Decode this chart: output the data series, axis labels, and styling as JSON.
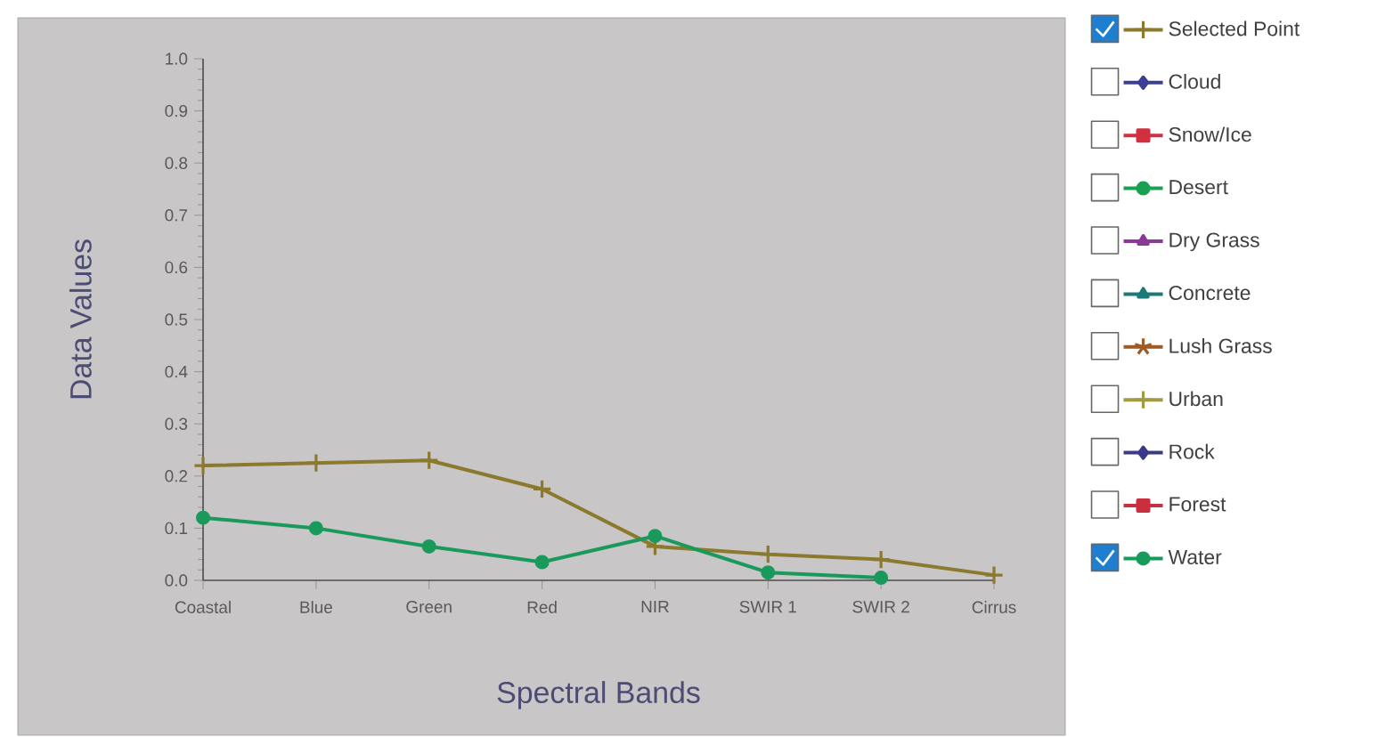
{
  "chart_data": {
    "type": "line",
    "xlabel": "Spectral Bands",
    "ylabel": "Data Values",
    "categories": [
      "Coastal",
      "Blue",
      "Green",
      "Red",
      "NIR",
      "SWIR 1",
      "SWIR 2",
      "Cirrus"
    ],
    "ylim": [
      0,
      1
    ],
    "yticks": [
      {
        "value": 0,
        "label": "0.0"
      },
      {
        "value": 0.1,
        "label": "0.1"
      },
      {
        "value": 0.2,
        "label": "0.2"
      },
      {
        "value": 0.3,
        "label": "0.3"
      },
      {
        "value": 0.4,
        "label": "0.4"
      },
      {
        "value": 0.5,
        "label": "0.5"
      },
      {
        "value": 0.6,
        "label": "0.6"
      },
      {
        "value": 0.7,
        "label": "0.7"
      },
      {
        "value": 0.8,
        "label": "0.8"
      },
      {
        "value": 0.9,
        "label": "0.9"
      },
      {
        "value": 1,
        "label": "1.0"
      }
    ],
    "legend": "right",
    "line_style": "solid",
    "series": [
      {
        "name": "Selected Point",
        "color": "#8b7a2e",
        "marker": "cross",
        "values": [
          0.22,
          0.225,
          0.23,
          0.175,
          0.065,
          0.05,
          0.04,
          0.01
        ]
      },
      {
        "name": "Cloud",
        "color": "#3a3f95",
        "marker": "diamond",
        "values": [
          null,
          null,
          null,
          null,
          null,
          null,
          null,
          null
        ]
      },
      {
        "name": "Snow/Ice",
        "color": "#d0303f",
        "marker": "square",
        "values": [
          null,
          null,
          null,
          null,
          null,
          null,
          null,
          null
        ]
      },
      {
        "name": "Desert",
        "color": "#1aa050",
        "marker": "circle",
        "values": [
          null,
          null,
          null,
          null,
          null,
          null,
          null,
          null
        ]
      },
      {
        "name": "Dry Grass",
        "color": "#8a3a96",
        "marker": "triangle",
        "values": [
          null,
          null,
          null,
          null,
          null,
          null,
          null,
          null
        ]
      },
      {
        "name": "Concrete",
        "color": "#1a7a78",
        "marker": "triangle",
        "values": [
          null,
          null,
          null,
          null,
          null,
          null,
          null,
          null
        ]
      },
      {
        "name": "Lush Grass",
        "color": "#a05a24",
        "marker": "star",
        "values": [
          null,
          null,
          null,
          null,
          null,
          null,
          null,
          null
        ]
      },
      {
        "name": "Urban",
        "color": "#a09a40",
        "marker": "cross",
        "values": [
          null,
          null,
          null,
          null,
          null,
          null,
          null,
          null
        ]
      },
      {
        "name": "Rock",
        "color": "#3a3a88",
        "marker": "diamond",
        "values": [
          null,
          null,
          null,
          null,
          null,
          null,
          null,
          null
        ]
      },
      {
        "name": "Forest",
        "color": "#c83040",
        "marker": "square",
        "values": [
          null,
          null,
          null,
          null,
          null,
          null,
          null,
          null
        ]
      },
      {
        "name": "Water",
        "color": "#1a9a5a",
        "marker": "circle",
        "values": [
          0.12,
          0.1,
          0.065,
          0.035,
          0.085,
          0.015,
          0.005,
          null
        ]
      }
    ]
  }
}
